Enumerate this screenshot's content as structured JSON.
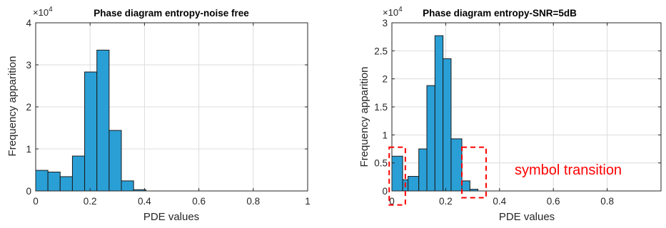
{
  "chart_data": [
    {
      "type": "bar",
      "title": "Phase diagram entropy-noise free",
      "multiplier_base": "×10",
      "multiplier_exp": "4",
      "xlabel": "PDE values",
      "ylabel": "Frequency apparition",
      "xlim": [
        0,
        1
      ],
      "ylim": [
        0,
        4
      ],
      "xticks": [
        0,
        0.2,
        0.4,
        0.6,
        0.8,
        1
      ],
      "xtick_labels": [
        "0",
        "0.2",
        "0.4",
        "0.6",
        "0.8",
        "1"
      ],
      "yticks": [
        0,
        1,
        2,
        3,
        4
      ],
      "ytick_labels": [
        "0",
        "1",
        "2",
        "3",
        "4"
      ],
      "grid": true,
      "bar_color": "#2a9fd6",
      "bins": [
        {
          "x0": 0.0,
          "x1": 0.045,
          "value": 0.49
        },
        {
          "x0": 0.045,
          "x1": 0.09,
          "value": 0.45
        },
        {
          "x0": 0.09,
          "x1": 0.135,
          "value": 0.34
        },
        {
          "x0": 0.135,
          "x1": 0.18,
          "value": 0.83
        },
        {
          "x0": 0.18,
          "x1": 0.225,
          "value": 2.83
        },
        {
          "x0": 0.225,
          "x1": 0.27,
          "value": 3.35
        },
        {
          "x0": 0.27,
          "x1": 0.315,
          "value": 1.44
        },
        {
          "x0": 0.315,
          "x1": 0.36,
          "value": 0.24
        },
        {
          "x0": 0.36,
          "x1": 0.405,
          "value": 0.03
        }
      ]
    },
    {
      "type": "bar",
      "title": "Phase diagram entropy-SNR=5dB",
      "multiplier_base": "×10",
      "multiplier_exp": "4",
      "xlabel": "PDE values",
      "ylabel": "Frequency apparition",
      "xlim": [
        0,
        1
      ],
      "ylim": [
        0,
        3
      ],
      "xticks": [
        0,
        0.2,
        0.4,
        0.6,
        0.8
      ],
      "xtick_labels": [
        "0",
        "0.2",
        "0.4",
        "0.6",
        "0.8"
      ],
      "yticks": [
        0,
        0.5,
        1,
        1.5,
        2,
        2.5,
        3
      ],
      "ytick_labels": [
        "0",
        "0.5",
        "1",
        "1.5",
        "2",
        "2.5",
        "3"
      ],
      "grid": true,
      "bar_color": "#2a9fd6",
      "bins": [
        {
          "x0": 0.0,
          "x1": 0.04,
          "value": 0.62
        },
        {
          "x0": 0.04,
          "x1": 0.06,
          "value": 0.2
        },
        {
          "x0": 0.06,
          "x1": 0.1,
          "value": 0.26
        },
        {
          "x0": 0.1,
          "x1": 0.13,
          "value": 0.75
        },
        {
          "x0": 0.13,
          "x1": 0.16,
          "value": 1.88
        },
        {
          "x0": 0.16,
          "x1": 0.19,
          "value": 2.77
        },
        {
          "x0": 0.19,
          "x1": 0.22,
          "value": 2.36
        },
        {
          "x0": 0.22,
          "x1": 0.26,
          "value": 0.93
        },
        {
          "x0": 0.26,
          "x1": 0.29,
          "value": 0.18
        },
        {
          "x0": 0.29,
          "x1": 0.32,
          "value": 0.03
        }
      ],
      "annotation": {
        "text": "symbol transition",
        "color": "#ff0000",
        "boxes": [
          {
            "x0": -0.01,
            "x1": 0.05,
            "y0": -0.25,
            "y1": 0.78
          },
          {
            "x0": 0.26,
            "x1": 0.35,
            "y0": -0.12,
            "y1": 0.78
          }
        ]
      }
    }
  ]
}
